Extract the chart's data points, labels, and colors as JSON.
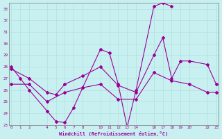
{
  "xlabel": "Windchill (Refroidissement éolien,°C)",
  "bg_color": "#c8f0f0",
  "line_color": "#990099",
  "grid_color": "#b0e0e0",
  "ylim": [
    23,
    33.5
  ],
  "xlim": [
    -0.3,
    23.3
  ],
  "yticks": [
    23,
    24,
    25,
    26,
    27,
    28,
    29,
    30,
    31,
    32,
    33
  ],
  "xticks": [
    0,
    1,
    2,
    4,
    5,
    6,
    7,
    8,
    10,
    11,
    12,
    13,
    14,
    16,
    17,
    18,
    19,
    20,
    22,
    23
  ],
  "line1_x": [
    0,
    1,
    2,
    4,
    5,
    6,
    7,
    8,
    10,
    11,
    12,
    13,
    14,
    16,
    17,
    18
  ],
  "line1_y": [
    28.0,
    27.0,
    26.0,
    24.2,
    23.3,
    23.2,
    24.5,
    26.2,
    29.5,
    29.2,
    26.5,
    22.8,
    26.0,
    33.2,
    33.5,
    33.2
  ],
  "line2_x": [
    0,
    2,
    4,
    5,
    6,
    8,
    10,
    12,
    14,
    16,
    17,
    18,
    19,
    20,
    22,
    23
  ],
  "line2_y": [
    27.8,
    27.0,
    25.8,
    25.6,
    26.5,
    27.2,
    28.0,
    26.4,
    25.8,
    29.0,
    30.5,
    27.0,
    28.5,
    28.5,
    28.2,
    26.5
  ],
  "line3_x": [
    0,
    2,
    4,
    6,
    8,
    10,
    12,
    14,
    16,
    18,
    20,
    22,
    23
  ],
  "line3_y": [
    26.5,
    26.5,
    25.0,
    25.8,
    26.2,
    26.5,
    25.2,
    25.2,
    27.5,
    26.8,
    26.5,
    25.8,
    25.8
  ]
}
